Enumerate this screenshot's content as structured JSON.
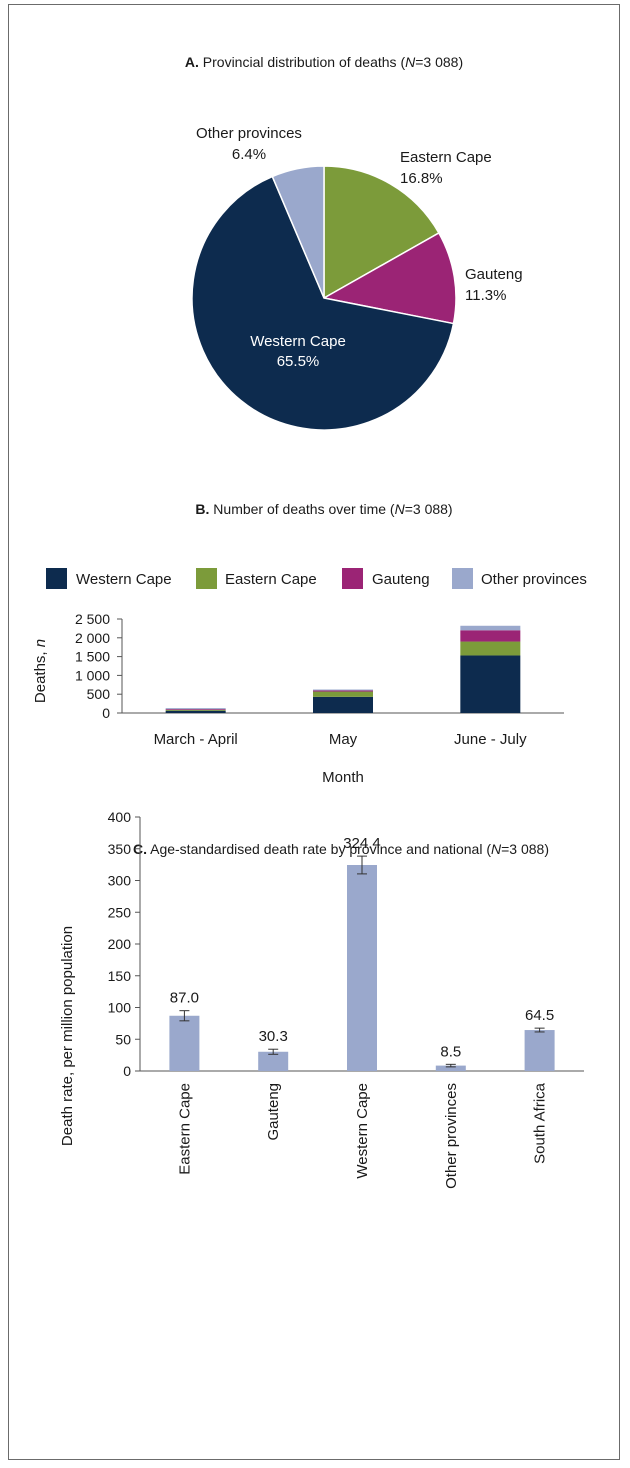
{
  "colors": {
    "western_cape": "#0d2b4e",
    "eastern_cape": "#7c9b3a",
    "gauteng": "#9b2475",
    "other_provinces": "#9aa8cc",
    "axis": "#555555",
    "error_bar": "#333333"
  },
  "chart_data": [
    {
      "type": "pie",
      "title_letter": "A.",
      "title_text": "Provincial distribution of deaths (",
      "title_n_symbol": "N",
      "title_n_value": "=3 088)",
      "slices": [
        {
          "label": "Eastern Cape",
          "value": 16.8,
          "value_label": "16.8%",
          "color": "#7c9b3a"
        },
        {
          "label": "Gauteng",
          "value": 11.3,
          "value_label": "11.3%",
          "color": "#9b2475"
        },
        {
          "label": "Western Cape",
          "value": 65.5,
          "value_label": "65.5%",
          "color": "#0d2b4e"
        },
        {
          "label": "Other provinces",
          "value": 6.4,
          "value_label": "6.4%",
          "color": "#9aa8cc"
        }
      ]
    },
    {
      "type": "bar",
      "stacked": true,
      "title_letter": "B.",
      "title_text": "Number of deaths over time (",
      "title_n_symbol": "N",
      "title_n_value": "=3 088)",
      "categories": [
        "March - April",
        "May",
        "June - July"
      ],
      "series": [
        {
          "name": "Western Cape",
          "values": [
            60,
            430,
            1530
          ],
          "color": "#0d2b4e"
        },
        {
          "name": "Eastern Cape",
          "values": [
            25,
            140,
            370
          ],
          "color": "#7c9b3a"
        },
        {
          "name": "Gauteng",
          "values": [
            20,
            30,
            300
          ],
          "color": "#9b2475"
        },
        {
          "name": "Other provinces",
          "values": [
            25,
            25,
            120
          ],
          "color": "#9aa8cc"
        }
      ],
      "xlabel": "Month",
      "ylabel_text": "Deaths, ",
      "ylabel_n": "n",
      "ylim": [
        0,
        2500
      ],
      "yticks": [
        0,
        500,
        1000,
        1500,
        2000,
        2500
      ],
      "ytick_labels": [
        "0",
        "500",
        "1 000",
        "1 500",
        "2 000",
        "2 500"
      ],
      "legend_position": "top"
    },
    {
      "type": "bar",
      "title_letter": "C.",
      "title_text": "Age-standardised death rate by province and national (",
      "title_n_symbol": "N",
      "title_n_value": "=3 088)",
      "categories": [
        "Eastern Cape",
        "Gauteng",
        "Western Cape",
        "Other provinces",
        "South Africa"
      ],
      "values": [
        87.0,
        30.3,
        324.4,
        8.5,
        64.5
      ],
      "value_labels": [
        "87.0",
        "30.3",
        "324.4",
        "8.5",
        "64.5"
      ],
      "error": [
        8,
        4,
        14,
        2,
        3
      ],
      "color": "#9aa8cc",
      "ylabel": "Death rate, per million population",
      "ylim": [
        0,
        400
      ],
      "yticks": [
        0,
        50,
        100,
        150,
        200,
        250,
        300,
        350,
        400
      ]
    }
  ]
}
